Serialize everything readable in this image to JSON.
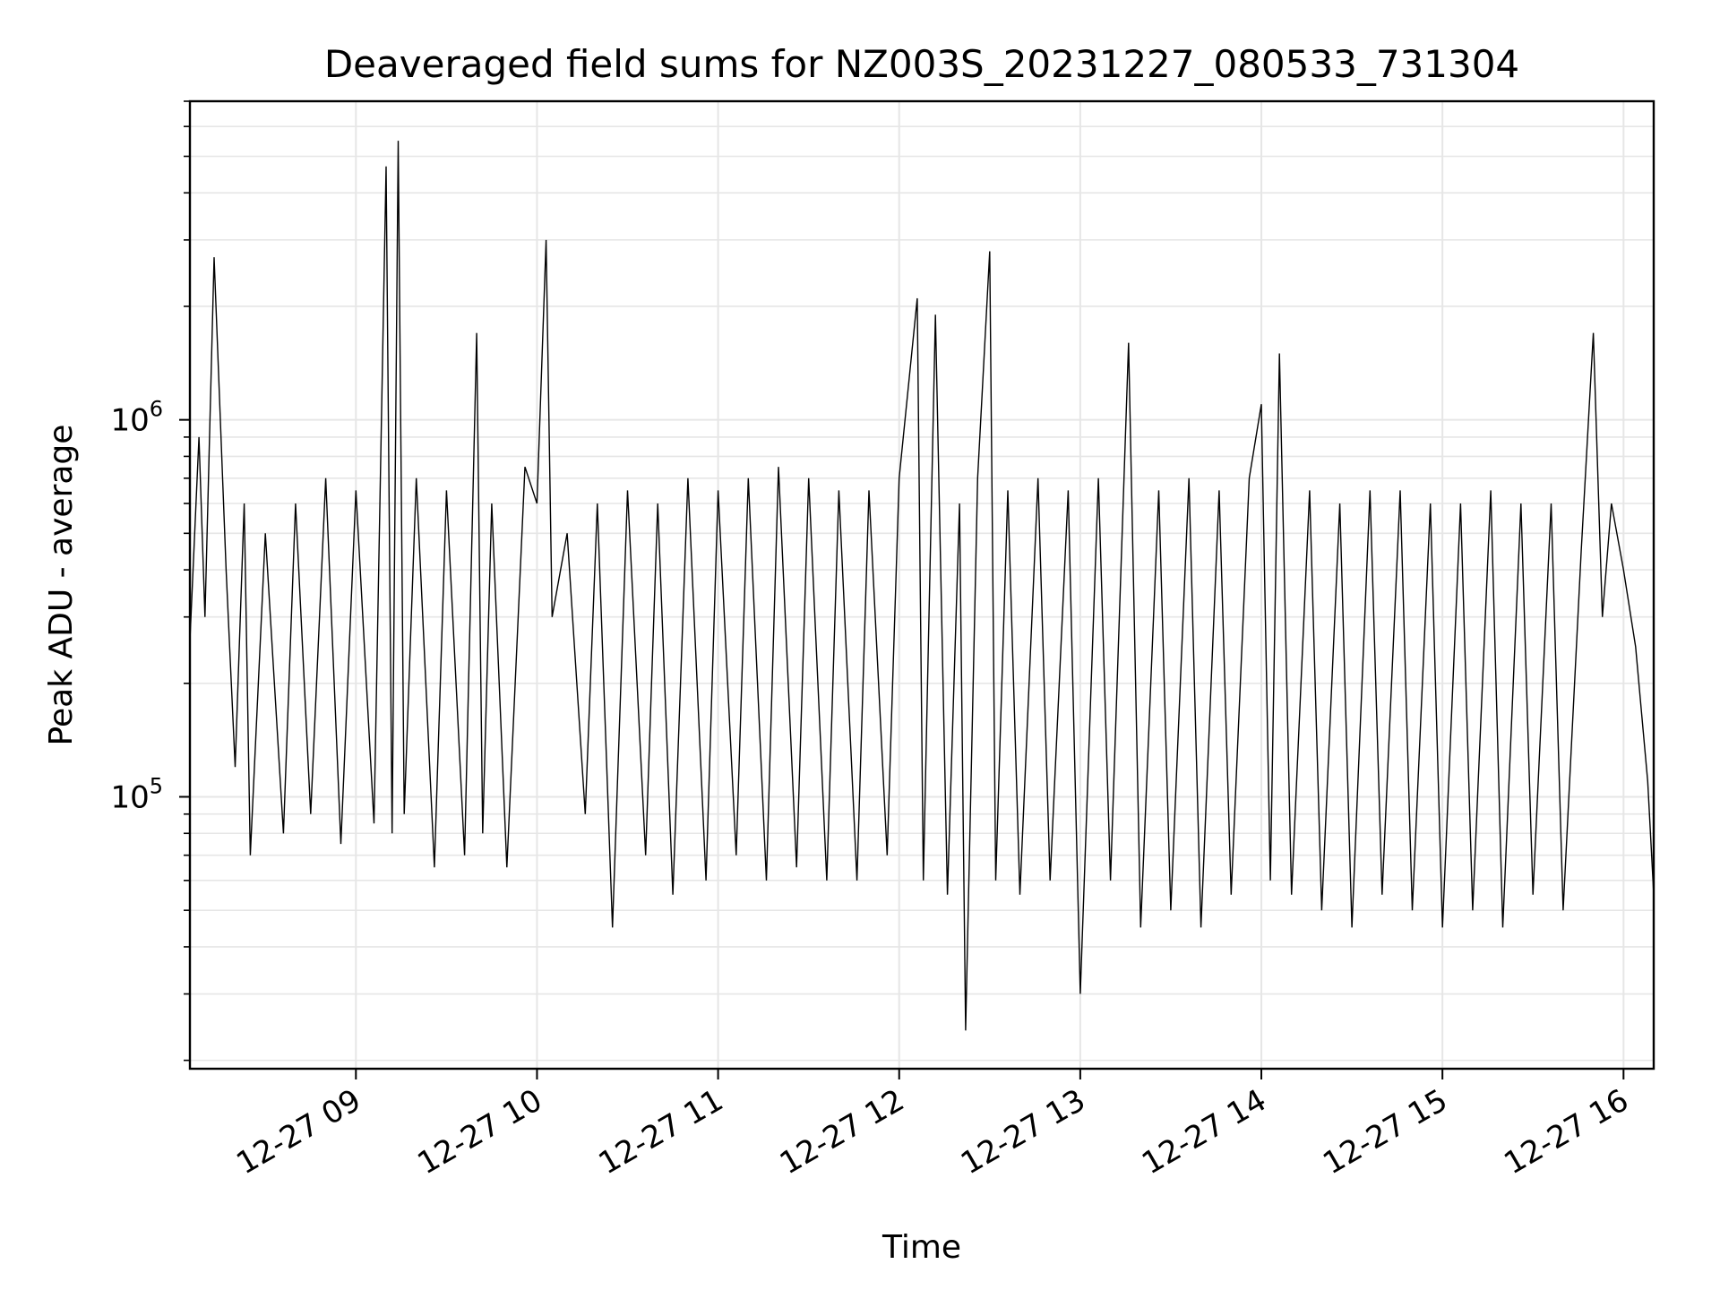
{
  "chart_data": {
    "type": "line",
    "title": "Deaveraged field sums for NZ003S_20231227_080533_731304",
    "xlabel": "Time",
    "ylabel": "Peak ADU - average",
    "yscale": "log",
    "xlim": [
      "2023-12-27 08:05",
      "2023-12-27 16:10"
    ],
    "ylim": [
      19000,
      7000000
    ],
    "grid": true,
    "line_color": "#000000",
    "x_ticks": [
      {
        "t": "2023-12-27 09:00",
        "label": "12-27 09"
      },
      {
        "t": "2023-12-27 10:00",
        "label": "12-27 10"
      },
      {
        "t": "2023-12-27 11:00",
        "label": "12-27 11"
      },
      {
        "t": "2023-12-27 12:00",
        "label": "12-27 12"
      },
      {
        "t": "2023-12-27 13:00",
        "label": "12-27 13"
      },
      {
        "t": "2023-12-27 14:00",
        "label": "12-27 14"
      },
      {
        "t": "2023-12-27 15:00",
        "label": "12-27 15"
      },
      {
        "t": "2023-12-27 16:00",
        "label": "12-27 16"
      }
    ],
    "y_ticks": [
      {
        "value": 100000,
        "base": "10",
        "exp": "5"
      },
      {
        "value": 1000000,
        "base": "10",
        "exp": "6"
      }
    ],
    "series": [
      {
        "x": [
          "2023-12-27 08:05",
          "2023-12-27 08:08",
          "2023-12-27 08:10",
          "2023-12-27 08:13",
          "2023-12-27 08:17",
          "2023-12-27 08:20",
          "2023-12-27 08:23",
          "2023-12-27 08:25",
          "2023-12-27 08:30",
          "2023-12-27 08:36",
          "2023-12-27 08:40",
          "2023-12-27 08:45",
          "2023-12-27 08:50",
          "2023-12-27 08:55",
          "2023-12-27 09:00",
          "2023-12-27 09:06",
          "2023-12-27 09:10",
          "2023-12-27 09:12",
          "2023-12-27 09:14",
          "2023-12-27 09:16",
          "2023-12-27 09:20",
          "2023-12-27 09:26",
          "2023-12-27 09:30",
          "2023-12-27 09:36",
          "2023-12-27 09:40",
          "2023-12-27 09:42",
          "2023-12-27 09:45",
          "2023-12-27 09:50",
          "2023-12-27 09:56",
          "2023-12-27 10:00",
          "2023-12-27 10:03",
          "2023-12-27 10:05",
          "2023-12-27 10:10",
          "2023-12-27 10:16",
          "2023-12-27 10:20",
          "2023-12-27 10:25",
          "2023-12-27 10:30",
          "2023-12-27 10:36",
          "2023-12-27 10:40",
          "2023-12-27 10:45",
          "2023-12-27 10:50",
          "2023-12-27 10:56",
          "2023-12-27 11:00",
          "2023-12-27 11:06",
          "2023-12-27 11:10",
          "2023-12-27 11:16",
          "2023-12-27 11:20",
          "2023-12-27 11:26",
          "2023-12-27 11:30",
          "2023-12-27 11:36",
          "2023-12-27 11:40",
          "2023-12-27 11:46",
          "2023-12-27 11:50",
          "2023-12-27 11:56",
          "2023-12-27 12:00",
          "2023-12-27 12:06",
          "2023-12-27 12:08",
          "2023-12-27 12:12",
          "2023-12-27 12:16",
          "2023-12-27 12:20",
          "2023-12-27 12:22",
          "2023-12-27 12:26",
          "2023-12-27 12:30",
          "2023-12-27 12:32",
          "2023-12-27 12:36",
          "2023-12-27 12:40",
          "2023-12-27 12:46",
          "2023-12-27 12:50",
          "2023-12-27 12:56",
          "2023-12-27 13:00",
          "2023-12-27 13:06",
          "2023-12-27 13:10",
          "2023-12-27 13:16",
          "2023-12-27 13:20",
          "2023-12-27 13:26",
          "2023-12-27 13:30",
          "2023-12-27 13:36",
          "2023-12-27 13:40",
          "2023-12-27 13:46",
          "2023-12-27 13:50",
          "2023-12-27 13:56",
          "2023-12-27 14:00",
          "2023-12-27 14:03",
          "2023-12-27 14:06",
          "2023-12-27 14:10",
          "2023-12-27 14:16",
          "2023-12-27 14:20",
          "2023-12-27 14:26",
          "2023-12-27 14:30",
          "2023-12-27 14:36",
          "2023-12-27 14:40",
          "2023-12-27 14:46",
          "2023-12-27 14:50",
          "2023-12-27 14:56",
          "2023-12-27 15:00",
          "2023-12-27 15:06",
          "2023-12-27 15:10",
          "2023-12-27 15:16",
          "2023-12-27 15:20",
          "2023-12-27 15:26",
          "2023-12-27 15:30",
          "2023-12-27 15:36",
          "2023-12-27 15:40",
          "2023-12-27 15:46",
          "2023-12-27 15:50",
          "2023-12-27 15:53",
          "2023-12-27 15:56",
          "2023-12-27 16:00",
          "2023-12-27 16:04",
          "2023-12-27 16:08",
          "2023-12-27 16:10"
        ],
        "y": [
          260000,
          900000,
          300000,
          2700000,
          400000,
          120000,
          600000,
          70000,
          500000,
          80000,
          600000,
          90000,
          700000,
          75000,
          650000,
          85000,
          4700000,
          80000,
          5500000,
          90000,
          700000,
          65000,
          650000,
          70000,
          1700000,
          80000,
          600000,
          65000,
          750000,
          600000,
          3000000,
          300000,
          500000,
          90000,
          600000,
          45000,
          650000,
          70000,
          600000,
          55000,
          700000,
          60000,
          650000,
          70000,
          700000,
          60000,
          750000,
          65000,
          700000,
          60000,
          650000,
          60000,
          650000,
          70000,
          700000,
          2100000,
          60000,
          1900000,
          55000,
          600000,
          24000,
          700000,
          2800000,
          60000,
          650000,
          55000,
          700000,
          60000,
          650000,
          30000,
          700000,
          60000,
          1600000,
          45000,
          650000,
          50000,
          700000,
          45000,
          650000,
          55000,
          700000,
          1100000,
          60000,
          1500000,
          55000,
          650000,
          50000,
          600000,
          45000,
          650000,
          55000,
          650000,
          50000,
          600000,
          45000,
          600000,
          50000,
          650000,
          45000,
          600000,
          55000,
          600000,
          50000,
          450000,
          1700000,
          300000,
          600000,
          400000,
          250000,
          110000,
          55000
        ]
      }
    ]
  }
}
